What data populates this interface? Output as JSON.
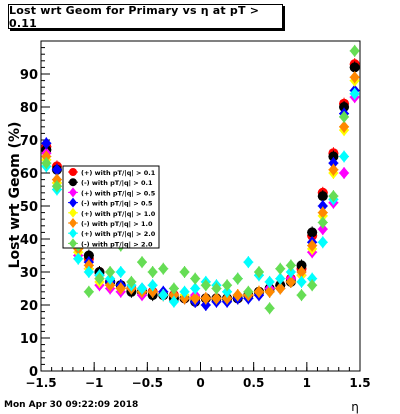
{
  "chart_data": {
    "type": "scatter",
    "title": "Lost wrt Geom for Primary vs   η at pT > 0.11",
    "xlabel": "η",
    "ylabel": "Lost wrt Geom (%)",
    "xlim": [
      -1.5,
      1.5
    ],
    "ylim": [
      0,
      100
    ],
    "x_ticks": [
      "−1.5",
      "−1",
      "−0.5",
      "0",
      "0.5",
      "1",
      "1.5"
    ],
    "y_ticks": [
      "0",
      "10",
      "20",
      "30",
      "40",
      "50",
      "60",
      "70",
      "80",
      "90"
    ],
    "grid": false,
    "legend_position": "middle-left",
    "series": [
      {
        "name": "(+) with pT/|q| > 0.1",
        "color": "#ff0000",
        "marker": "circle",
        "x": [
          -1.45,
          -1.35,
          -1.25,
          -1.15,
          -1.05,
          -0.95,
          -0.85,
          -0.75,
          -0.65,
          -0.55,
          -0.45,
          -0.35,
          -0.25,
          -0.15,
          -0.05,
          0.05,
          0.15,
          0.25,
          0.35,
          0.45,
          0.55,
          0.65,
          0.75,
          0.85,
          0.95,
          1.05,
          1.15,
          1.25,
          1.35,
          1.45
        ],
        "y": [
          68,
          62,
          50,
          40,
          34,
          30,
          27,
          26,
          25,
          24,
          24,
          23,
          23,
          22,
          22,
          22,
          22,
          22,
          22,
          23,
          24,
          25,
          26,
          28,
          31,
          41,
          54,
          66,
          81,
          93
        ]
      },
      {
        "name": "(-) with pT/|q| > 0.1",
        "color": "#000000",
        "marker": "circle",
        "x": [
          -1.45,
          -1.35,
          -1.25,
          -1.15,
          -1.05,
          -0.95,
          -0.85,
          -0.75,
          -0.65,
          -0.55,
          -0.45,
          -0.35,
          -0.25,
          -0.15,
          -0.05,
          0.05,
          0.15,
          0.25,
          0.35,
          0.45,
          0.55,
          0.65,
          0.75,
          0.85,
          0.95,
          1.05,
          1.15,
          1.25,
          1.35,
          1.45
        ],
        "y": [
          67,
          61,
          49,
          39,
          35,
          30,
          27,
          26,
          24,
          24,
          23,
          23,
          22,
          22,
          21,
          22,
          22,
          22,
          22,
          23,
          24,
          25,
          26,
          27,
          32,
          42,
          53,
          65,
          80,
          92
        ]
      },
      {
        "name": "(+) with pT/|q| > 0.5",
        "color": "#ff00ff",
        "marker": "diamond",
        "x": [
          -1.45,
          -1.35,
          -1.25,
          -1.15,
          -1.05,
          -0.95,
          -0.85,
          -0.75,
          -0.65,
          -0.55,
          -0.45,
          -0.35,
          -0.25,
          -0.15,
          -0.05,
          0.05,
          0.15,
          0.25,
          0.35,
          0.45,
          0.55,
          0.65,
          0.75,
          0.85,
          0.95,
          1.05,
          1.15,
          1.25,
          1.35,
          1.45
        ],
        "y": [
          66,
          57,
          46,
          35,
          31,
          26,
          25,
          24,
          25,
          23,
          24,
          23,
          23,
          23,
          23,
          22,
          22,
          22,
          23,
          23,
          23,
          25,
          25,
          28,
          29,
          36,
          43,
          51,
          60,
          83
        ]
      },
      {
        "name": "(-) with pT/|q| > 0.5",
        "color": "#0000ff",
        "marker": "diamond",
        "x": [
          -1.45,
          -1.35,
          -1.25,
          -1.15,
          -1.05,
          -0.95,
          -0.85,
          -0.75,
          -0.65,
          -0.55,
          -0.45,
          -0.35,
          -0.25,
          -0.15,
          -0.05,
          0.05,
          0.15,
          0.25,
          0.35,
          0.45,
          0.55,
          0.65,
          0.75,
          0.85,
          0.95,
          1.05,
          1.15,
          1.25,
          1.35,
          1.45
        ],
        "y": [
          69,
          61,
          50,
          38,
          33,
          29,
          27,
          26,
          25,
          25,
          24,
          24,
          23,
          22,
          21,
          20,
          21,
          21,
          22,
          22,
          23,
          24,
          25,
          27,
          30,
          39,
          50,
          63,
          78,
          85
        ]
      },
      {
        "name": "(+) with pT/|q| > 1.0",
        "color": "#ffff00",
        "marker": "diamond",
        "x": [
          -1.45,
          -1.35,
          -1.25,
          -1.15,
          -1.05,
          -0.95,
          -0.85,
          -0.75,
          -0.65,
          -0.55,
          -0.45,
          -0.35,
          -0.25,
          -0.15,
          -0.05,
          0.05,
          0.15,
          0.25,
          0.35,
          0.45,
          0.55,
          0.65,
          0.75,
          0.85,
          0.95,
          1.05,
          1.15,
          1.25,
          1.35,
          1.45
        ],
        "y": [
          64,
          57,
          46,
          36,
          31,
          27,
          26,
          25,
          25,
          24,
          24,
          23,
          23,
          23,
          22,
          22,
          22,
          22,
          23,
          23,
          24,
          24,
          25,
          27,
          29,
          37,
          47,
          60,
          73,
          88
        ]
      },
      {
        "name": "(-) with pT/|q| > 1.0",
        "color": "#ff8800",
        "marker": "diamond",
        "x": [
          -1.45,
          -1.35,
          -1.25,
          -1.15,
          -1.05,
          -0.95,
          -0.85,
          -0.75,
          -0.65,
          -0.55,
          -0.45,
          -0.35,
          -0.25,
          -0.15,
          -0.05,
          0.05,
          0.15,
          0.25,
          0.35,
          0.45,
          0.55,
          0.65,
          0.75,
          0.85,
          0.95,
          1.05,
          1.15,
          1.25,
          1.35,
          1.45
        ],
        "y": [
          65,
          58,
          47,
          37,
          32,
          28,
          26,
          25,
          25,
          24,
          24,
          23,
          23,
          22,
          22,
          22,
          22,
          22,
          23,
          23,
          24,
          24,
          25,
          27,
          30,
          38,
          48,
          61,
          74,
          89
        ]
      },
      {
        "name": "(+) with pT/|q| > 2.0",
        "color": "#00ffff",
        "marker": "diamond",
        "x": [
          -1.45,
          -1.35,
          -1.25,
          -1.15,
          -1.05,
          -0.95,
          -0.85,
          -0.75,
          -0.65,
          -0.55,
          -0.45,
          -0.35,
          -0.25,
          -0.15,
          -0.05,
          0.05,
          0.15,
          0.25,
          0.35,
          0.45,
          0.55,
          0.65,
          0.75,
          0.85,
          0.95,
          1.05,
          1.15,
          1.25,
          1.35,
          1.45
        ],
        "y": [
          62,
          55,
          44,
          34,
          30,
          29,
          28,
          30,
          26,
          25,
          26,
          23,
          21,
          24,
          25,
          27,
          26,
          24,
          28,
          33,
          29,
          27,
          28,
          30,
          27,
          28,
          39,
          52,
          65,
          84
        ]
      },
      {
        "name": "(-) with pT/|q| > 2.0",
        "color": "#66dd55",
        "marker": "diamond",
        "x": [
          -1.45,
          -1.35,
          -1.25,
          -1.15,
          -1.05,
          -0.95,
          -0.85,
          -0.75,
          -0.65,
          -0.55,
          -0.45,
          -0.35,
          -0.25,
          -0.15,
          -0.05,
          0.05,
          0.15,
          0.25,
          0.35,
          0.45,
          0.55,
          0.65,
          0.75,
          0.85,
          0.95,
          1.05,
          1.15,
          1.25,
          1.35,
          1.45
        ],
        "y": [
          63,
          56,
          46,
          38,
          24,
          28,
          30,
          38,
          27,
          33,
          30,
          31,
          25,
          30,
          28,
          26,
          25,
          26,
          28,
          24,
          30,
          19,
          31,
          32,
          23,
          26,
          45,
          53,
          77,
          97
        ]
      }
    ]
  },
  "footer": {
    "timestamp": "Mon Apr 30 09:22:09 2018"
  }
}
